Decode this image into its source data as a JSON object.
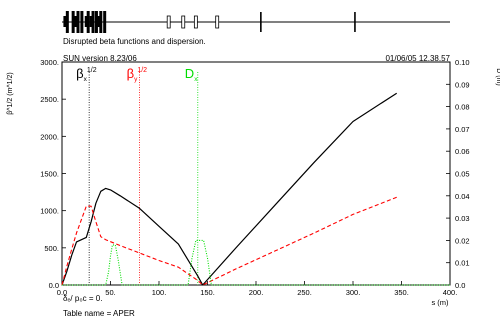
{
  "header": {
    "subtitle": "Disrupted beta functions and dispersion.",
    "version": "SUN version 8.23/06",
    "datetime": "01/06/05  12.38.57"
  },
  "footer": {
    "delta_line": "δₑ/ p₀c  =   0.",
    "table_line": "Table name = APER"
  },
  "colors": {
    "beta_x": "#000000",
    "beta_y": "#ff0000",
    "dispersion": "#00dd00"
  },
  "chart_data": {
    "type": "line",
    "xlabel": "s (m)",
    "ylabel_left": "β^1/2 (m^1/2)",
    "ylabel_right": "D (m)",
    "x_ticks": [
      "0.0",
      "50.",
      "100.",
      "150.",
      "200.",
      "250.",
      "300.",
      "350.",
      "400."
    ],
    "y_left_ticks": [
      "0.0",
      "500.",
      "1000.",
      "1500.",
      "2000.",
      "2500.",
      "3000."
    ],
    "y_right_ticks": [
      "0.0",
      "0.01",
      "0.02",
      "0.03",
      "0.04",
      "0.05",
      "0.06",
      "0.07",
      "0.08",
      "0.09",
      "0.10"
    ],
    "xlim": [
      0,
      400
    ],
    "ylim_left": [
      0,
      3000
    ],
    "ylim_right": [
      0,
      0.1
    ],
    "grid": false,
    "legend": [
      {
        "base": "β",
        "sub": "x",
        "sup": "1/2",
        "color": "#000000"
      },
      {
        "base": "β",
        "sub": "y",
        "sup": "1/2",
        "color": "#ff0000"
      },
      {
        "base": "D",
        "sub": "x",
        "sup": "",
        "color": "#00dd00"
      }
    ],
    "series": [
      {
        "style": "solid",
        "color": "#000000",
        "axis": "left",
        "x": [
          0,
          5,
          10,
          15,
          20,
          25,
          30,
          35,
          40,
          45,
          50,
          60,
          80,
          100,
          120,
          140,
          145,
          180,
          220,
          260,
          300,
          345
        ],
        "y": [
          0,
          180,
          400,
          580,
          610,
          640,
          850,
          1100,
          1260,
          1300,
          1280,
          1200,
          1030,
          790,
          550,
          120,
          0,
          510,
          1080,
          1650,
          2200,
          2580
        ]
      },
      {
        "style": "dashed",
        "color": "#ff0000",
        "axis": "left",
        "x": [
          0,
          5,
          10,
          15,
          20,
          25,
          30,
          35,
          40,
          45,
          60,
          80,
          100,
          120,
          140,
          145,
          180,
          220,
          260,
          300,
          345
        ],
        "y": [
          0,
          250,
          480,
          700,
          880,
          1060,
          1060,
          850,
          650,
          610,
          530,
          430,
          330,
          240,
          60,
          0,
          220,
          460,
          700,
          950,
          1180
        ]
      },
      {
        "style": "dotted",
        "color": "#00dd00",
        "axis": "right",
        "x": [
          0,
          45,
          48,
          50,
          52,
          55,
          58,
          62,
          130,
          134,
          138,
          142,
          146,
          150,
          154,
          400
        ],
        "y": [
          0,
          0,
          0.006,
          0.013,
          0.018,
          0.018,
          0.011,
          0,
          0,
          0.012,
          0.02,
          0.02,
          0.02,
          0.012,
          0,
          0
        ]
      }
    ],
    "markers": [
      {
        "x": 28,
        "color": "#000000"
      },
      {
        "x": 80,
        "color": "#ff0000"
      },
      {
        "x": 140,
        "color": "#00dd00"
      }
    ],
    "lattice": {
      "tall": [
        5.5,
        11.5,
        16.5,
        20.5,
        27,
        32,
        35.5,
        40,
        44
      ],
      "short": [
        3,
        14,
        25,
        30,
        38
      ],
      "open": [
        110,
        125,
        138,
        160
      ],
      "ticks": [
        205,
        302
      ]
    }
  }
}
